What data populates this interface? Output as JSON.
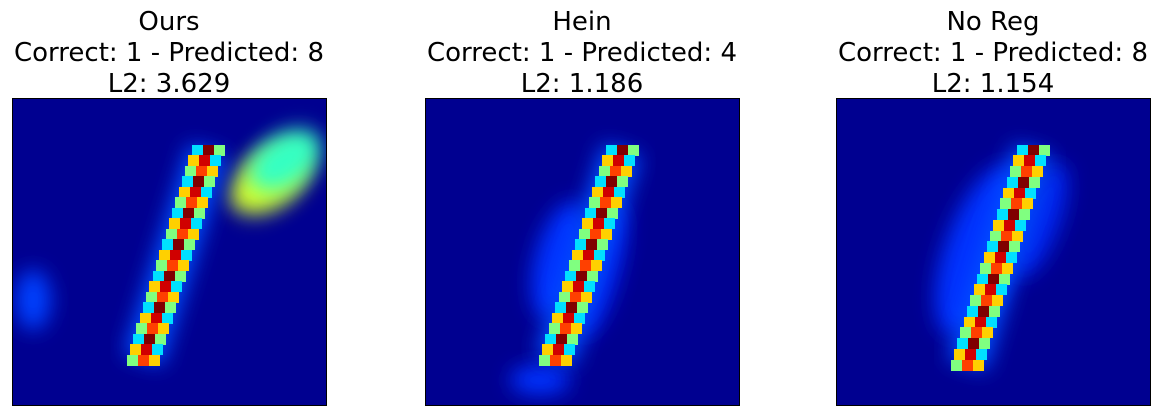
{
  "panels": [
    {
      "title": "Ours",
      "subtitle": "Correct: 1 - Predicted: 8",
      "metric": "L2: 3.629"
    },
    {
      "title": "Hein",
      "subtitle": "Correct: 1 - Predicted: 4",
      "metric": "L2: 1.186"
    },
    {
      "title": "No Reg",
      "subtitle": "Correct: 1 - Predicted: 8",
      "metric": "L2: 1.154"
    }
  ]
}
